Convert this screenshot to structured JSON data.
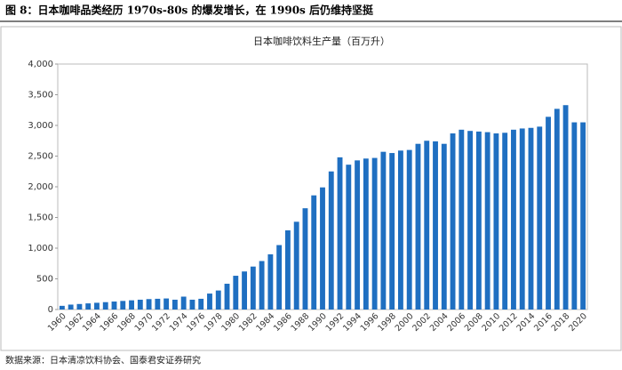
{
  "header": "图 8：日本咖啡品类经历 1970s-80s 的爆发增长，在 1990s 后仍维持坚挺",
  "source": "数据来源：日本清凉饮料协会、国泰君安证券研究",
  "chart_data": {
    "type": "bar",
    "title": "日本咖啡饮料生产量（百万升）",
    "categories": [
      "1960",
      null,
      "1962",
      null,
      "1964",
      null,
      "1966",
      null,
      "1968",
      null,
      "1970",
      null,
      "1972",
      null,
      "1974",
      null,
      "1976",
      null,
      "1978",
      null,
      "1980",
      null,
      "1982",
      null,
      "1984",
      null,
      "1986",
      null,
      "1988",
      null,
      "1990",
      null,
      "1992",
      null,
      "1994",
      null,
      "1996",
      null,
      "1998",
      null,
      "2000",
      null,
      "2002",
      null,
      "2004",
      null,
      "2006",
      null,
      "2008",
      null,
      "2010",
      null,
      "2012",
      null,
      "2014",
      null,
      "2016",
      null,
      "2018",
      null,
      "2020"
    ],
    "values": [
      60,
      80,
      90,
      100,
      110,
      120,
      130,
      140,
      150,
      160,
      170,
      175,
      180,
      160,
      210,
      160,
      175,
      260,
      310,
      420,
      550,
      620,
      700,
      790,
      900,
      1050,
      1290,
      1430,
      1650,
      1860,
      1990,
      2250,
      2480,
      2360,
      2430,
      2460,
      2470,
      2570,
      2550,
      2590,
      2600,
      2700,
      2750,
      2740,
      2700,
      2870,
      2930,
      2910,
      2900,
      2890,
      2870,
      2880,
      2930,
      2950,
      2960,
      2980,
      3140,
      3270,
      3330,
      3050,
      3050
    ],
    "color": "#1f6fc1",
    "ylim": [
      0,
      4000
    ],
    "yticks": [
      0,
      500,
      {
        "value": 1000,
        "label": "1,000"
      },
      {
        "value": 1500,
        "label": "1,500"
      },
      {
        "value": 2000,
        "label": "2,000"
      },
      {
        "value": 2500,
        "label": "2,500"
      },
      {
        "value": 3000,
        "label": "3,000"
      },
      {
        "value": 3500,
        "label": "3,500"
      },
      {
        "value": 4000,
        "label": "4,000"
      }
    ],
    "grid": false
  }
}
